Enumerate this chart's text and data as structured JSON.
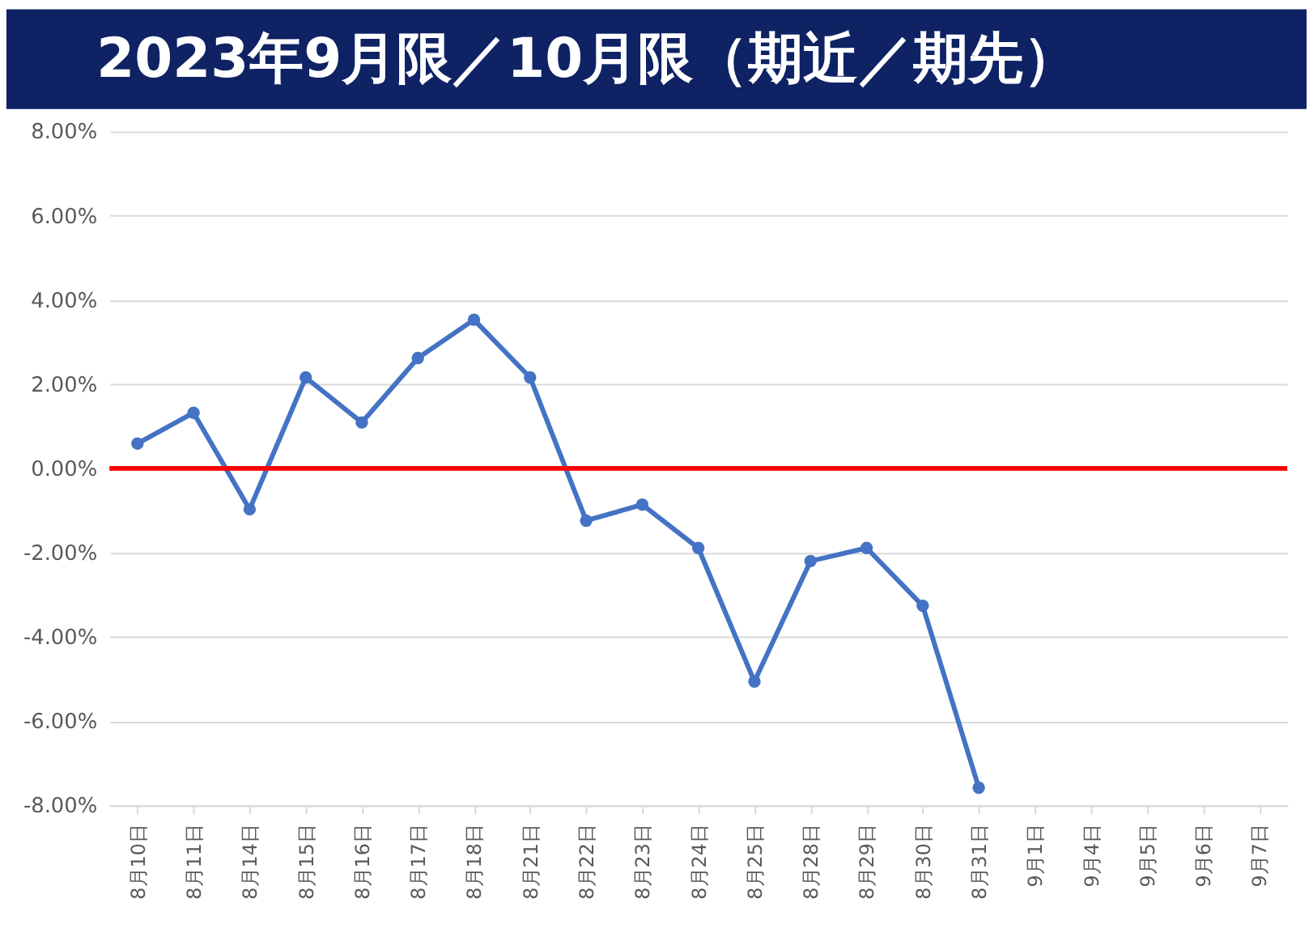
{
  "chart_data": {
    "type": "line",
    "title": "2023年9月限／10月限（期近／期先）",
    "categories": [
      "8月10日",
      "8月11日",
      "8月14日",
      "8月15日",
      "8月16日",
      "8月17日",
      "8月18日",
      "8月21日",
      "8月22日",
      "8月23日",
      "8月24日",
      "8月25日",
      "8月28日",
      "8月29日",
      "8月30日",
      "8月31日",
      "9月1日",
      "9月4日",
      "9月5日",
      "9月6日",
      "9月7日"
    ],
    "series": [
      {
        "color": "#4472c4",
        "values": [
          0.59,
          1.32,
          -0.97,
          2.16,
          1.09,
          2.62,
          3.53,
          2.16,
          -1.24,
          -0.86,
          -1.89,
          -5.06,
          -2.2,
          -1.89,
          -3.26,
          -7.58,
          null,
          null,
          null,
          null,
          null
        ]
      }
    ],
    "ylim": [
      -8,
      8
    ],
    "yticks": [
      {
        "value": -8,
        "label": "-8.00%"
      },
      {
        "value": -6,
        "label": "-6.00%"
      },
      {
        "value": -4,
        "label": "-4.00%"
      },
      {
        "value": -2,
        "label": "-2.00%"
      },
      {
        "value": 0,
        "label": "0.00%"
      },
      {
        "value": 2,
        "label": "2.00%"
      },
      {
        "value": 4,
        "label": "4.00%"
      },
      {
        "value": 6,
        "label": "6.00%"
      },
      {
        "value": 8,
        "label": "8.00%"
      }
    ],
    "ref_lines": [
      {
        "axis": "y",
        "value": 0,
        "color": "#ff0000"
      }
    ],
    "grid": "y",
    "marker": "circle",
    "line_style": "solid"
  }
}
